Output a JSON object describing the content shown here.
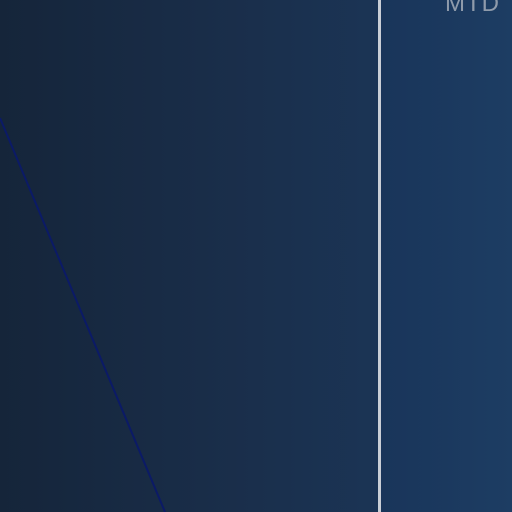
{
  "labels": {
    "period": "MTD"
  },
  "colors": {
    "background_left": "#15253a",
    "background_right": "#1c3a5f",
    "divider": "#c9ced6",
    "diagonal_line": "#0b1a66",
    "label_text": "#8f9bab"
  }
}
